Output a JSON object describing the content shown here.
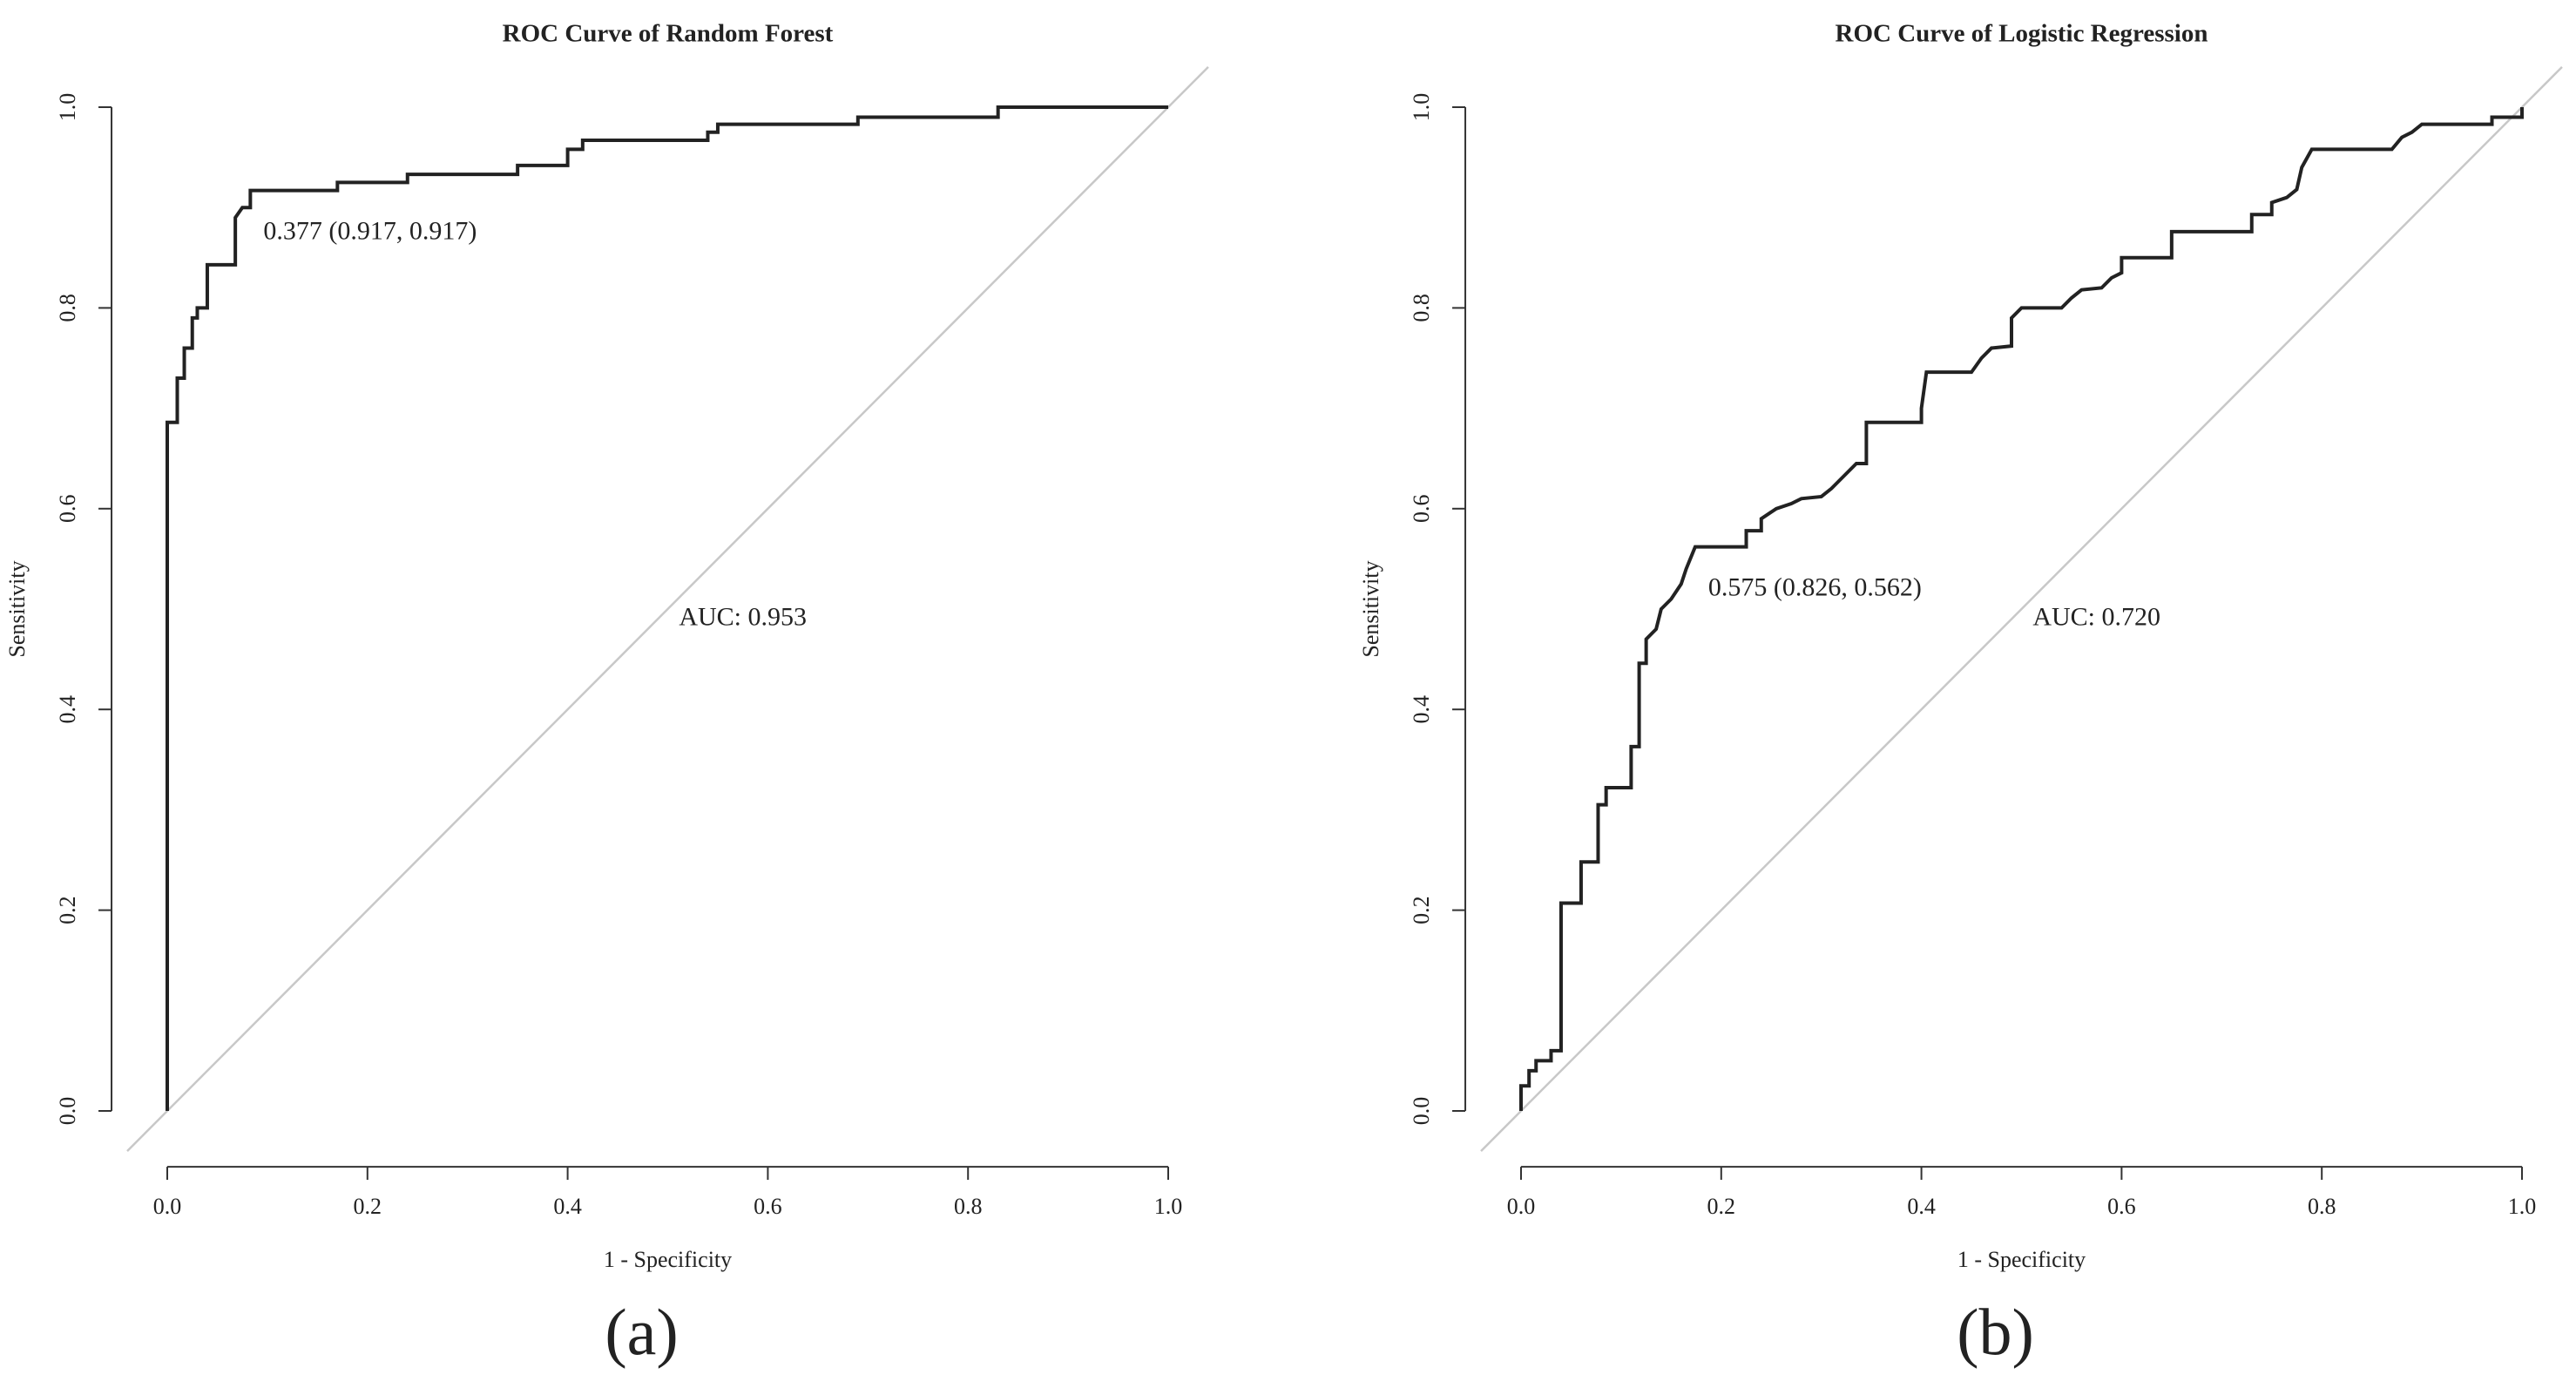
{
  "chart_data": [
    {
      "type": "line",
      "title": "ROC Curve of Random Forest",
      "xlabel": "1 - Specificity",
      "ylabel": "Sensitivity",
      "threshold_label": "0.377 (0.917, 0.917)",
      "threshold_point": [
        0.083,
        0.917
      ],
      "auc_label": "AUC: 0.953",
      "panel_label": "(a)",
      "color": "#222222",
      "x": [
        0,
        0,
        0.01,
        0.01,
        0.017,
        0.017,
        0.025,
        0.025,
        0.03,
        0.03,
        0.04,
        0.04,
        0.068,
        0.068,
        0.075,
        0.083,
        0.083,
        0.17,
        0.17,
        0.24,
        0.24,
        0.35,
        0.35,
        0.4,
        0.4,
        0.415,
        0.415,
        0.54,
        0.54,
        0.55,
        0.55,
        0.69,
        0.69,
        0.83,
        0.83,
        1
      ],
      "values": [
        0,
        0.686,
        0.686,
        0.73,
        0.73,
        0.76,
        0.76,
        0.79,
        0.79,
        0.8,
        0.8,
        0.843,
        0.843,
        0.89,
        0.9,
        0.9,
        0.917,
        0.917,
        0.925,
        0.925,
        0.933,
        0.933,
        0.942,
        0.942,
        0.958,
        0.958,
        0.967,
        0.967,
        0.975,
        0.975,
        0.983,
        0.983,
        0.99,
        0.99,
        1,
        1
      ],
      "xlim": [
        -0.04,
        1.04
      ],
      "ylim": [
        -0.04,
        1.04
      ],
      "xticks": [
        {
          "value": 0,
          "label": "0.0"
        },
        0.2,
        0.4,
        0.6,
        0.8,
        {
          "value": 1,
          "label": "1.0"
        }
      ],
      "yticks": [
        {
          "value": 0,
          "label": "0.0"
        },
        0.2,
        0.4,
        0.6,
        0.8,
        {
          "value": 1,
          "label": "1.0"
        }
      ]
    },
    {
      "type": "line",
      "title": "ROC Curve of Logistic Regression",
      "xlabel": "1 - Specificity",
      "ylabel": "Sensitivity",
      "threshold_label": "0.575 (0.826, 0.562)",
      "threshold_point": [
        0.174,
        0.562
      ],
      "auc_label": "AUC: 0.720",
      "panel_label": "(b)",
      "color": "#222222",
      "x": [
        0,
        0,
        0.008,
        0.008,
        0.015,
        0.015,
        0.03,
        0.03,
        0.04,
        0.04,
        0.06,
        0.06,
        0.077,
        0.077,
        0.085,
        0.085,
        0.11,
        0.11,
        0.118,
        0.118,
        0.125,
        0.125,
        0.135,
        0.14,
        0.15,
        0.16,
        0.165,
        0.174,
        0.225,
        0.225,
        0.24,
        0.24,
        0.255,
        0.27,
        0.28,
        0.3,
        0.31,
        0.32,
        0.335,
        0.345,
        0.345,
        0.4,
        0.4,
        0.405,
        0.45,
        0.46,
        0.47,
        0.49,
        0.49,
        0.5,
        0.54,
        0.55,
        0.56,
        0.58,
        0.59,
        0.6,
        0.6,
        0.65,
        0.65,
        0.73,
        0.73,
        0.75,
        0.75,
        0.765,
        0.775,
        0.78,
        0.79,
        0.87,
        0.88,
        0.89,
        0.9,
        0.97,
        0.97,
        1,
        1
      ],
      "values": [
        0,
        0.025,
        0.025,
        0.04,
        0.04,
        0.05,
        0.05,
        0.06,
        0.06,
        0.207,
        0.207,
        0.248,
        0.248,
        0.305,
        0.305,
        0.322,
        0.322,
        0.363,
        0.363,
        0.446,
        0.446,
        0.47,
        0.48,
        0.5,
        0.51,
        0.525,
        0.54,
        0.562,
        0.562,
        0.578,
        0.578,
        0.59,
        0.6,
        0.605,
        0.61,
        0.612,
        0.62,
        0.63,
        0.645,
        0.645,
        0.686,
        0.686,
        0.7,
        0.736,
        0.736,
        0.75,
        0.76,
        0.762,
        0.79,
        0.8,
        0.8,
        0.81,
        0.818,
        0.82,
        0.83,
        0.835,
        0.85,
        0.85,
        0.876,
        0.876,
        0.893,
        0.893,
        0.905,
        0.91,
        0.918,
        0.94,
        0.958,
        0.958,
        0.97,
        0.975,
        0.983,
        0.983,
        0.99,
        0.99,
        1
      ],
      "xlim": [
        -0.04,
        1.04
      ],
      "ylim": [
        -0.04,
        1.04
      ],
      "xticks": [
        {
          "value": 0,
          "label": "0.0"
        },
        0.2,
        0.4,
        0.6,
        0.8,
        {
          "value": 1,
          "label": "1.0"
        }
      ],
      "yticks": [
        {
          "value": 0,
          "label": "0.0"
        },
        0.2,
        0.4,
        0.6,
        0.8,
        {
          "value": 1,
          "label": "1.0"
        }
      ]
    }
  ]
}
